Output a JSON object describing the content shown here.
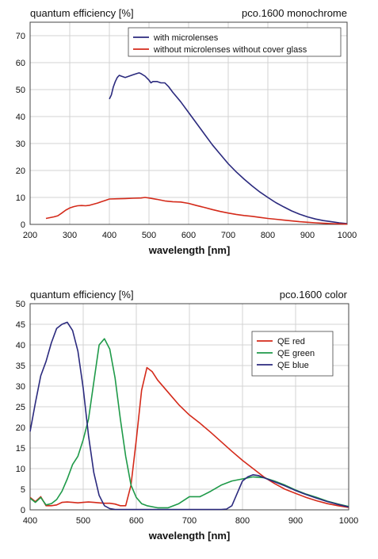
{
  "chart_data": [
    {
      "type": "line",
      "title_left": "quantum efficiency [%]",
      "title_right": "pco.1600 monochrome",
      "xlabel": "wavelength [nm]",
      "ylabel": "",
      "xlim": [
        200,
        1000
      ],
      "ylim": [
        0,
        75
      ],
      "xticks": [
        200,
        300,
        400,
        500,
        600,
        700,
        800,
        900,
        1000
      ],
      "yticks": [
        0,
        10,
        20,
        30,
        40,
        50,
        60,
        70
      ],
      "grid": true,
      "legend_position": "top-right",
      "series": [
        {
          "name": "with microlenses",
          "color": "#2b2a7e",
          "x": [
            400,
            405,
            410,
            415,
            420,
            425,
            430,
            440,
            450,
            460,
            470,
            475,
            480,
            490,
            500,
            505,
            510,
            520,
            530,
            540,
            550,
            560,
            580,
            600,
            620,
            640,
            660,
            680,
            700,
            720,
            740,
            760,
            780,
            800,
            820,
            840,
            860,
            880,
            900,
            920,
            940,
            960,
            980,
            1000
          ],
          "y": [
            46.5,
            48,
            51,
            53,
            54.5,
            55.3,
            55.0,
            54.5,
            55.0,
            55.5,
            56.0,
            56.2,
            55.9,
            55.0,
            53.5,
            52.5,
            53.0,
            53.0,
            52.5,
            52.5,
            51.0,
            49.0,
            45.5,
            41.5,
            37.5,
            33.5,
            29.5,
            26.0,
            22.5,
            19.5,
            16.8,
            14.3,
            12.0,
            10.0,
            8.1,
            6.5,
            5.0,
            3.8,
            2.8,
            2.0,
            1.4,
            1.0,
            0.6,
            0.3
          ]
        },
        {
          "name": "without microlenses without cover glass",
          "color": "#d42a1a",
          "x": [
            240,
            250,
            260,
            270,
            280,
            290,
            300,
            310,
            320,
            330,
            340,
            350,
            360,
            370,
            380,
            390,
            400,
            420,
            440,
            460,
            480,
            490,
            500,
            520,
            540,
            560,
            580,
            600,
            620,
            640,
            660,
            680,
            700,
            720,
            740,
            760,
            780,
            800,
            820,
            840,
            860,
            880,
            900,
            920,
            940,
            960,
            980,
            1000
          ],
          "y": [
            2.2,
            2.5,
            2.8,
            3.2,
            4.2,
            5.3,
            6.1,
            6.6,
            6.9,
            7.0,
            6.9,
            7.1,
            7.5,
            7.9,
            8.4,
            8.9,
            9.4,
            9.5,
            9.6,
            9.7,
            9.8,
            10.0,
            9.8,
            9.3,
            8.7,
            8.4,
            8.3,
            7.8,
            7.0,
            6.3,
            5.5,
            4.8,
            4.2,
            3.7,
            3.3,
            3.0,
            2.6,
            2.2,
            1.9,
            1.6,
            1.3,
            1.0,
            0.8,
            0.6,
            0.4,
            0.3,
            0.2,
            0.1
          ]
        }
      ]
    },
    {
      "type": "line",
      "title_left": "quantum efficiency [%]",
      "title_right": "pco.1600 color",
      "xlabel": "wavelength [nm]",
      "ylabel": "",
      "xlim": [
        400,
        1000
      ],
      "ylim": [
        0,
        50
      ],
      "xticks": [
        400,
        500,
        600,
        700,
        800,
        900,
        1000
      ],
      "yticks": [
        0,
        5,
        10,
        15,
        20,
        25,
        30,
        35,
        40,
        45,
        50
      ],
      "grid": true,
      "legend_position": "top-right",
      "series": [
        {
          "name": "QE red",
          "color": "#d42a1a",
          "x": [
            400,
            410,
            420,
            430,
            440,
            450,
            460,
            470,
            480,
            490,
            500,
            510,
            520,
            530,
            540,
            550,
            560,
            570,
            580,
            590,
            600,
            610,
            620,
            630,
            640,
            660,
            680,
            700,
            720,
            740,
            760,
            780,
            800,
            820,
            840,
            860,
            880,
            900,
            920,
            940,
            960,
            980,
            1000
          ],
          "y": [
            3.0,
            2.0,
            3.2,
            1.0,
            1.0,
            1.2,
            1.8,
            1.9,
            1.8,
            1.7,
            1.8,
            1.9,
            1.8,
            1.7,
            1.6,
            1.6,
            1.4,
            1.0,
            1.0,
            6.0,
            17.0,
            29.0,
            34.5,
            33.5,
            31.5,
            28.5,
            25.5,
            23.0,
            21.0,
            18.8,
            16.5,
            14.2,
            12.0,
            10.0,
            8.0,
            6.4,
            5.0,
            4.0,
            3.0,
            2.2,
            1.5,
            1.0,
            0.6
          ]
        },
        {
          "name": "QE green",
          "color": "#1f9a49",
          "x": [
            400,
            410,
            420,
            430,
            440,
            450,
            460,
            470,
            480,
            490,
            500,
            510,
            520,
            530,
            540,
            550,
            560,
            570,
            580,
            590,
            600,
            610,
            620,
            640,
            660,
            680,
            700,
            720,
            740,
            760,
            780,
            800,
            820,
            840,
            860,
            880,
            900,
            920,
            940,
            960,
            980,
            1000
          ],
          "y": [
            2.8,
            1.8,
            3.0,
            1.2,
            1.5,
            2.5,
            4.5,
            7.5,
            11.0,
            13.0,
            17.0,
            22.0,
            31.0,
            40.0,
            41.5,
            39.0,
            32.0,
            22.0,
            13.0,
            6.0,
            3.0,
            1.5,
            1.0,
            0.5,
            0.5,
            1.5,
            3.2,
            3.2,
            4.5,
            6.0,
            7.0,
            7.5,
            8.0,
            7.8,
            7.0,
            6.0,
            4.8,
            3.8,
            3.0,
            2.1,
            1.4,
            0.8
          ]
        },
        {
          "name": "QE blue",
          "color": "#2b2a7e",
          "x": [
            400,
            410,
            420,
            430,
            440,
            450,
            460,
            470,
            480,
            490,
            500,
            510,
            520,
            530,
            540,
            550,
            560,
            570,
            580,
            600,
            620,
            640,
            660,
            680,
            700,
            720,
            740,
            760,
            770,
            780,
            790,
            800,
            810,
            820,
            830,
            840,
            860,
            880,
            900,
            920,
            940,
            960,
            980,
            1000
          ],
          "y": [
            19.0,
            26.0,
            32.5,
            36.0,
            40.5,
            44.0,
            45.0,
            45.5,
            43.5,
            38.5,
            29.5,
            18.0,
            9.0,
            3.5,
            1.0,
            0.3,
            0.1,
            0.1,
            0.1,
            0.1,
            0.1,
            0.1,
            0.1,
            0.1,
            0.1,
            0.1,
            0.1,
            0.1,
            0.2,
            1.0,
            4.0,
            7.0,
            8.0,
            8.5,
            8.3,
            7.8,
            6.8,
            5.8,
            4.7,
            3.7,
            2.8,
            2.0,
            1.3,
            0.7
          ]
        }
      ]
    }
  ]
}
